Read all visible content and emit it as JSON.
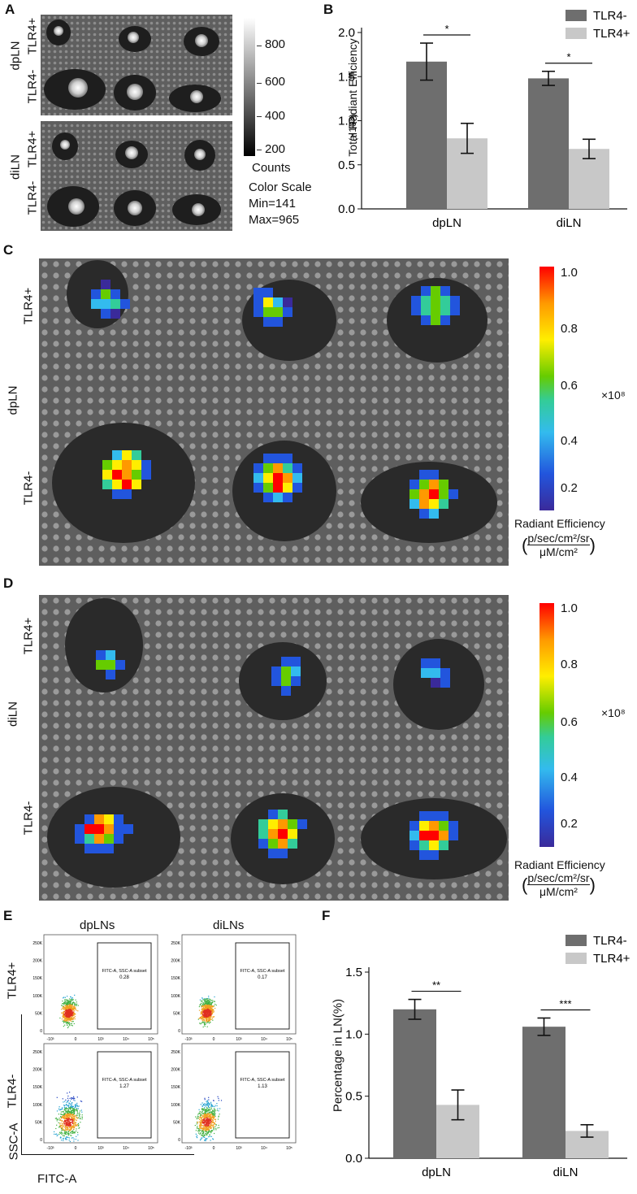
{
  "panels": {
    "a": {
      "letter": "A",
      "group_dpln": "dpLN",
      "group_diln": "diLN",
      "row_tlr4_pos": "TLR4+",
      "row_tlr4_neg": "TLR4-",
      "colorbar_ticks": [
        "800",
        "600",
        "400",
        "200"
      ],
      "colorbar_title": "Counts",
      "color_scale": "Color Scale",
      "min": "Min=141",
      "max": "Max=965"
    },
    "b": {
      "letter": "B",
      "ylabel": "Total Radiant Efficiency",
      "yunit": "(×10⁸)"
    },
    "c": {
      "letter": "C",
      "group": "dpLN",
      "row_pos": "TLR4+",
      "row_neg": "TLR4-",
      "colorbar_ticks": [
        "1.0",
        "0.8",
        "0.6",
        "0.4",
        "0.2"
      ],
      "multiplier": "×10⁸",
      "cb_title": "Radiant Efficiency",
      "cb_unit_num": "p/sec/cm²/sr",
      "cb_unit_den": "μM/cm²"
    },
    "d": {
      "letter": "D",
      "group": "diLN",
      "row_pos": "TLR4+",
      "row_neg": "TLR4-",
      "colorbar_ticks": [
        "1.0",
        "0.8",
        "0.6",
        "0.4",
        "0.2"
      ],
      "multiplier": "×10⁸",
      "cb_title": "Radiant Efficiency",
      "cb_unit_num": "p/sec/cm²/sr",
      "cb_unit_den": "μM/cm²"
    },
    "e": {
      "letter": "E",
      "col_dpln": "dpLNs",
      "col_diln": "diLNs",
      "row_pos": "TLR4+",
      "row_neg": "TLR4-",
      "yaxis": "SSC-A",
      "xaxis": "FITC-A",
      "gate_label": "FITC-A, SSC-A subset",
      "values": [
        "0.28",
        "0.17",
        "1.27",
        "1.13"
      ],
      "y_ticks": [
        "250K",
        "200K",
        "150K",
        "100K",
        "50K",
        "0"
      ],
      "x_ticks": [
        "-10³",
        "0",
        "10³",
        "10⁴",
        "10⁵"
      ]
    },
    "f": {
      "letter": "F",
      "ylabel": "Percentage in LN(%)"
    }
  },
  "colors": {
    "tlr4_neg": "#6e6e6e",
    "tlr4_pos": "#c8c8c8",
    "background_image": "#6a6a6a"
  },
  "chart_data": [
    {
      "type": "bar",
      "id": "B",
      "categories": [
        "dpLN",
        "diLN"
      ],
      "series": [
        {
          "name": "TLR4-",
          "values": [
            1.67,
            1.48
          ],
          "errors": [
            0.21,
            0.08
          ]
        },
        {
          "name": "TLR4+",
          "values": [
            0.8,
            0.68
          ],
          "errors": [
            0.17,
            0.11
          ]
        }
      ],
      "ylim": [
        0,
        2.0
      ],
      "yticks": [
        "0.0",
        "0.5",
        "1.0",
        "1.5",
        "2.0"
      ],
      "significance": [
        "*",
        "*"
      ],
      "legend": "top-right"
    },
    {
      "type": "bar",
      "id": "F",
      "categories": [
        "dpLN",
        "diLN"
      ],
      "series": [
        {
          "name": "TLR4-",
          "values": [
            1.2,
            1.06
          ],
          "errors": [
            0.08,
            0.07
          ]
        },
        {
          "name": "TLR4+",
          "values": [
            0.43,
            0.22
          ],
          "errors": [
            0.12,
            0.05
          ]
        }
      ],
      "ylim": [
        0,
        1.5
      ],
      "yticks": [
        "0.0",
        "0.5",
        "1.0",
        "1.5"
      ],
      "significance": [
        "**",
        "***"
      ],
      "legend": "top-right"
    }
  ]
}
